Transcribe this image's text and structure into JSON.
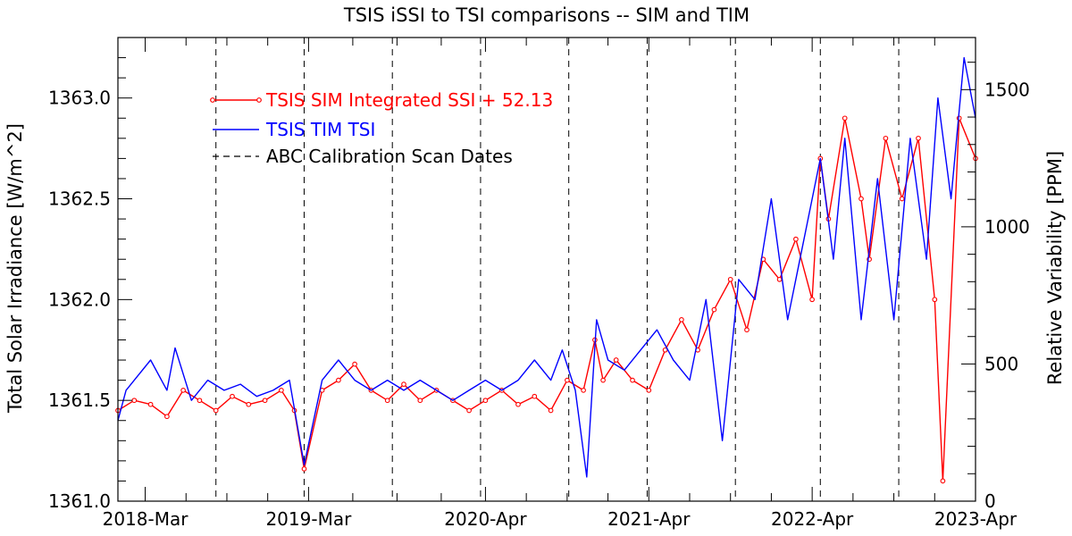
{
  "chart_data": {
    "type": "line",
    "title": "TSIS iSSI to TSI comparisons -- SIM and TIM",
    "ylabel_left": "Total Solar Irradiance [W/m^2]",
    "ylabel_right": "Relative Variability [PPM]",
    "x_tick_labels": [
      "2018-Mar",
      "2019-Mar",
      "2020-Apr",
      "2021-Apr",
      "2022-Apr",
      "2023-Apr"
    ],
    "x_tick_years": [
      2018.167,
      2019.167,
      2020.25,
      2021.25,
      2022.25,
      2023.25
    ],
    "xlim_years": [
      2018.0,
      2023.25
    ],
    "ylim_left": [
      1361.0,
      1363.3
    ],
    "yticks_left": [
      "1361.0",
      "1361.5",
      "1362.0",
      "1362.5",
      "1363.0"
    ],
    "yticks_left_values": [
      1361.0,
      1361.5,
      1362.0,
      1362.5,
      1363.0
    ],
    "yticks_right": [
      "0",
      "500",
      "1000",
      "1500"
    ],
    "yticks_right_values": [
      0,
      500,
      1000,
      1500
    ],
    "right_ppm_reference": 1361.0,
    "grid": false,
    "legend_position": "upper-left",
    "calibration_dates_years": [
      2018.6,
      2019.14,
      2019.68,
      2020.22,
      2020.76,
      2021.24,
      2021.78,
      2022.3,
      2022.78
    ],
    "series": [
      {
        "name": "TSIS SIM Integrated SSI + 52.13",
        "color": "#ff0000",
        "marker": "circle",
        "x": [
          2018.0,
          2018.1,
          2018.2,
          2018.3,
          2018.4,
          2018.5,
          2018.6,
          2018.7,
          2018.8,
          2018.9,
          2019.0,
          2019.08,
          2019.14,
          2019.25,
          2019.35,
          2019.45,
          2019.55,
          2019.65,
          2019.75,
          2019.85,
          2019.95,
          2020.05,
          2020.15,
          2020.25,
          2020.35,
          2020.45,
          2020.55,
          2020.65,
          2020.75,
          2020.85,
          2020.92,
          2020.97,
          2021.05,
          2021.15,
          2021.25,
          2021.35,
          2021.45,
          2021.55,
          2021.65,
          2021.75,
          2021.85,
          2021.95,
          2022.05,
          2022.15,
          2022.25,
          2022.3,
          2022.35,
          2022.45,
          2022.55,
          2022.6,
          2022.7,
          2022.8,
          2022.9,
          2023.0,
          2023.05,
          2023.15,
          2023.25
        ],
        "y": [
          1361.45,
          1361.5,
          1361.48,
          1361.42,
          1361.55,
          1361.5,
          1361.45,
          1361.52,
          1361.48,
          1361.5,
          1361.55,
          1361.45,
          1361.16,
          1361.55,
          1361.6,
          1361.68,
          1361.55,
          1361.5,
          1361.58,
          1361.5,
          1361.55,
          1361.5,
          1361.45,
          1361.5,
          1361.55,
          1361.48,
          1361.52,
          1361.45,
          1361.6,
          1361.55,
          1361.8,
          1361.6,
          1361.7,
          1361.6,
          1361.55,
          1361.75,
          1361.9,
          1361.75,
          1361.95,
          1362.1,
          1361.85,
          1362.2,
          1362.1,
          1362.3,
          1362.0,
          1362.7,
          1362.4,
          1362.9,
          1362.5,
          1362.2,
          1362.8,
          1362.5,
          1362.8,
          1362.0,
          1361.1,
          1362.9,
          1362.7
        ]
      },
      {
        "name": "TSIS TIM TSI",
        "color": "#0000ff",
        "marker": "none",
        "x": [
          2018.0,
          2018.05,
          2018.1,
          2018.2,
          2018.3,
          2018.35,
          2018.45,
          2018.55,
          2018.65,
          2018.75,
          2018.85,
          2018.95,
          2019.05,
          2019.14,
          2019.25,
          2019.35,
          2019.45,
          2019.55,
          2019.65,
          2019.75,
          2019.85,
          2019.95,
          2020.05,
          2020.15,
          2020.25,
          2020.35,
          2020.45,
          2020.55,
          2020.65,
          2020.72,
          2020.8,
          2020.87,
          2020.93,
          2021.0,
          2021.1,
          2021.2,
          2021.3,
          2021.4,
          2021.5,
          2021.6,
          2021.7,
          2021.8,
          2021.9,
          2022.0,
          2022.1,
          2022.2,
          2022.3,
          2022.38,
          2022.45,
          2022.55,
          2022.65,
          2022.75,
          2022.85,
          2022.95,
          2023.02,
          2023.1,
          2023.18,
          2023.25
        ],
        "y": [
          1361.4,
          1361.55,
          1361.6,
          1361.7,
          1361.55,
          1361.76,
          1361.5,
          1361.6,
          1361.55,
          1361.58,
          1361.52,
          1361.55,
          1361.6,
          1361.18,
          1361.6,
          1361.7,
          1361.6,
          1361.55,
          1361.6,
          1361.55,
          1361.6,
          1361.55,
          1361.5,
          1361.55,
          1361.6,
          1361.55,
          1361.6,
          1361.7,
          1361.6,
          1361.75,
          1361.55,
          1361.12,
          1361.9,
          1361.7,
          1361.65,
          1361.75,
          1361.85,
          1361.7,
          1361.6,
          1362.0,
          1361.3,
          1362.1,
          1362.0,
          1362.5,
          1361.9,
          1362.3,
          1362.7,
          1362.2,
          1362.8,
          1361.9,
          1362.6,
          1361.9,
          1362.8,
          1362.2,
          1363.0,
          1362.5,
          1363.2,
          1362.9
        ]
      }
    ],
    "legend": [
      {
        "label": "TSIS SIM Integrated SSI + 52.13",
        "color": "#ff0000",
        "style": "line-marker"
      },
      {
        "label": "TSIS TIM TSI",
        "color": "#0000ff",
        "style": "line"
      },
      {
        "label": "ABC Calibration Scan Dates",
        "color": "#000000",
        "style": "dashed"
      }
    ]
  }
}
